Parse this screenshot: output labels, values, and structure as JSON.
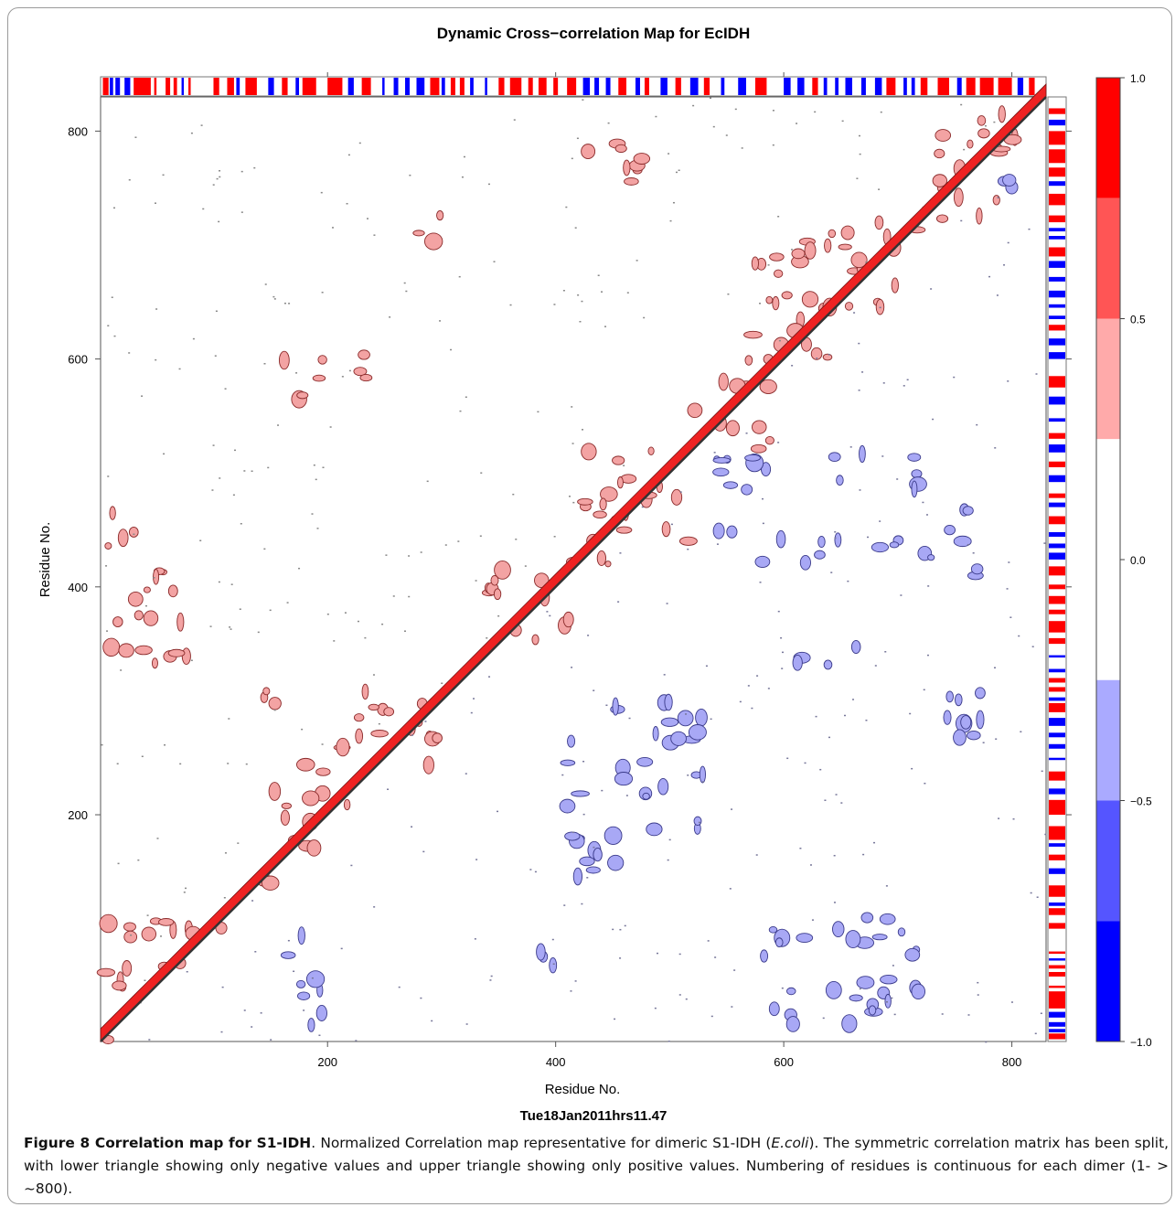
{
  "chart_data": {
    "type": "heatmap",
    "title": "Dynamic Cross−correlation Map for EcIDH",
    "xlabel": "Residue No.",
    "ylabel": "Residue No.",
    "sublabel": "Tue18Jan2011hrs11.47",
    "xlim": [
      1,
      830
    ],
    "ylim": [
      1,
      830
    ],
    "x_ticks": [
      200,
      400,
      600,
      800
    ],
    "y_ticks": [
      200,
      400,
      600,
      800
    ],
    "colorbar": {
      "range": [
        -1.0,
        1.0
      ],
      "tick_values": [
        1.0,
        0.5,
        0.0,
        -0.5,
        -1.0
      ],
      "tick_labels": [
        "1.0",
        "0.5",
        "0.0",
        "−0.5",
        "−1.0"
      ],
      "levels": [
        {
          "from": 0.75,
          "to": 1.0,
          "color": "#ff0000"
        },
        {
          "from": 0.5,
          "to": 0.75,
          "color": "#ff5555"
        },
        {
          "from": 0.25,
          "to": 0.5,
          "color": "#ffaaaa"
        },
        {
          "from": -0.25,
          "to": 0.25,
          "color": "#ffffff"
        },
        {
          "from": -0.5,
          "to": -0.25,
          "color": "#aaaaff"
        },
        {
          "from": -0.75,
          "to": -0.5,
          "color": "#5555ff"
        },
        {
          "from": -1.0,
          "to": -0.75,
          "color": "#0000ff"
        }
      ]
    },
    "upper_triangle": "positive correlations only",
    "lower_triangle": "negative correlations only",
    "positive_regions": [
      {
        "x": [
          1,
          40
        ],
        "y": [
          1,
          110
        ],
        "level": 0.5
      },
      {
        "x": [
          40,
          110
        ],
        "y": [
          60,
          120
        ],
        "level": 0.5
      },
      {
        "x": [
          5,
          25
        ],
        "y": [
          340,
          370
        ],
        "level": 0.5
      },
      {
        "x": [
          30,
          100
        ],
        "y": [
          330,
          400
        ],
        "level": 0.5
      },
      {
        "x": [
          40,
          60
        ],
        "y": [
          400,
          415
        ],
        "level": 0.5
      },
      {
        "x": [
          5,
          40
        ],
        "y": [
          430,
          480
        ],
        "level": 0.5
      },
      {
        "x": [
          130,
          160
        ],
        "y": [
          120,
          160
        ],
        "level": 0.5
      },
      {
        "x": [
          150,
          220
        ],
        "y": [
          170,
          250
        ],
        "level": 0.5
      },
      {
        "x": [
          200,
          300
        ],
        "y": [
          240,
          310
        ],
        "level": 0.5
      },
      {
        "x": [
          125,
          160
        ],
        "y": [
          290,
          320
        ],
        "level": 0.5
      },
      {
        "x": [
          160,
          200
        ],
        "y": [
          560,
          620
        ],
        "level": 0.5
      },
      {
        "x": [
          225,
          240
        ],
        "y": [
          570,
          610
        ],
        "level": 0.5
      },
      {
        "x": [
          280,
          310
        ],
        "y": [
          690,
          730
        ],
        "level": 0.5
      },
      {
        "x": [
          340,
          420
        ],
        "y": [
          350,
          415
        ],
        "level": 0.5
      },
      {
        "x": [
          415,
          520
        ],
        "y": [
          420,
          520
        ],
        "level": 0.5
      },
      {
        "x": [
          520,
          590
        ],
        "y": [
          520,
          600
        ],
        "level": 0.5
      },
      {
        "x": [
          570,
          640
        ],
        "y": [
          600,
          700
        ],
        "level": 0.5
      },
      {
        "x": [
          610,
          720
        ],
        "y": [
          640,
          720
        ],
        "level": 0.5
      },
      {
        "x": [
          420,
          480
        ],
        "y": [
          740,
          800
        ],
        "level": 0.5
      },
      {
        "x": [
          720,
          790
        ],
        "y": [
          720,
          800
        ],
        "level": 0.5
      },
      {
        "x": [
          760,
          820
        ],
        "y": [
          780,
          825
        ],
        "level": 0.5
      }
    ],
    "negative_regions": [
      {
        "x": [
          160,
          200
        ],
        "y": [
          10,
          100
        ],
        "level": -0.5
      },
      {
        "x": [
          380,
          400
        ],
        "y": [
          60,
          80
        ],
        "level": -0.5
      },
      {
        "x": [
          410,
          460
        ],
        "y": [
          140,
          300
        ],
        "level": -0.5
      },
      {
        "x": [
          470,
          530
        ],
        "y": [
          160,
          300
        ],
        "level": -0.5
      },
      {
        "x": [
          580,
          720
        ],
        "y": [
          10,
          110
        ],
        "level": -0.5
      },
      {
        "x": [
          610,
          700
        ],
        "y": [
          330,
          350
        ],
        "level": -0.5
      },
      {
        "x": [
          540,
          720
        ],
        "y": [
          480,
          520
        ],
        "level": -0.5
      },
      {
        "x": [
          540,
          760
        ],
        "y": [
          420,
          450
        ],
        "level": -0.5
      },
      {
        "x": [
          740,
          780
        ],
        "y": [
          220,
          320
        ],
        "level": -0.5
      },
      {
        "x": [
          750,
          770
        ],
        "y": [
          380,
          480
        ],
        "level": -0.5
      },
      {
        "x": [
          790,
          800
        ],
        "y": [
          750,
          760
        ],
        "level": -0.5
      }
    ],
    "top_strip_blocks": [
      [
        3,
        8,
        1.0
      ],
      [
        9,
        12,
        -0.9
      ],
      [
        14,
        18,
        -0.9
      ],
      [
        22,
        27,
        -0.9
      ],
      [
        30,
        45,
        1.0
      ],
      [
        48,
        50,
        1.0
      ],
      [
        58,
        62,
        1.0
      ],
      [
        65,
        68,
        1.0
      ],
      [
        72,
        74,
        -0.9
      ],
      [
        78,
        80,
        1.0
      ],
      [
        100,
        105,
        1.0
      ],
      [
        112,
        118,
        1.0
      ],
      [
        120,
        123,
        -0.9
      ],
      [
        128,
        138,
        1.0
      ],
      [
        148,
        153,
        -0.9
      ],
      [
        160,
        165,
        1.0
      ],
      [
        172,
        175,
        -0.9
      ],
      [
        178,
        190,
        1.0
      ],
      [
        200,
        213,
        1.0
      ],
      [
        218,
        223,
        -0.9
      ],
      [
        230,
        238,
        1.0
      ],
      [
        248,
        250,
        -0.9
      ],
      [
        258,
        262,
        -0.9
      ],
      [
        268,
        272,
        -0.9
      ],
      [
        278,
        285,
        -0.9
      ],
      [
        290,
        298,
        1.0
      ],
      [
        300,
        303,
        -0.9
      ],
      [
        308,
        312,
        1.0
      ],
      [
        316,
        320,
        1.0
      ],
      [
        325,
        328,
        -0.9
      ],
      [
        338,
        340,
        -0.9
      ],
      [
        350,
        355,
        1.0
      ],
      [
        360,
        370,
        1.0
      ],
      [
        376,
        380,
        1.0
      ],
      [
        385,
        392,
        1.0
      ],
      [
        398,
        402,
        1.0
      ],
      [
        410,
        418,
        1.0
      ],
      [
        424,
        430,
        -0.9
      ],
      [
        434,
        438,
        -0.9
      ],
      [
        444,
        448,
        -0.9
      ],
      [
        455,
        462,
        1.0
      ],
      [
        470,
        474,
        -0.9
      ],
      [
        478,
        482,
        1.0
      ],
      [
        492,
        498,
        -0.9
      ],
      [
        505,
        510,
        1.0
      ],
      [
        518,
        525,
        -0.9
      ],
      [
        530,
        535,
        1.0
      ],
      [
        545,
        548,
        -0.9
      ],
      [
        560,
        567,
        -0.9
      ],
      [
        575,
        585,
        1.0
      ],
      [
        600,
        606,
        -0.9
      ],
      [
        612,
        618,
        -0.9
      ],
      [
        625,
        630,
        1.0
      ],
      [
        635,
        638,
        -0.9
      ],
      [
        645,
        648,
        -0.9
      ],
      [
        654,
        660,
        -0.9
      ],
      [
        668,
        672,
        -0.9
      ],
      [
        680,
        686,
        -0.9
      ],
      [
        690,
        698,
        1.0
      ],
      [
        705,
        708,
        -0.9
      ],
      [
        712,
        715,
        -0.9
      ],
      [
        720,
        726,
        1.0
      ],
      [
        735,
        745,
        1.0
      ],
      [
        752,
        756,
        -0.9
      ],
      [
        760,
        768,
        1.0
      ],
      [
        772,
        784,
        1.0
      ],
      [
        788,
        800,
        1.0
      ],
      [
        805,
        810,
        -0.9
      ],
      [
        815,
        820,
        1.0
      ]
    ]
  },
  "caption": {
    "label": "Figure 8 Correlation map for S1-IDH",
    "text_before_italic": ". Normalized Correlation map representative for dimeric S1-IDH (",
    "italic": "E.coli",
    "text_after_italic": "). The symmetric correlation matrix has been split, with lower triangle showing only negative values and upper triangle showing only positive values. Numbering of residues is continuous for each dimer (1- > ~800)."
  }
}
